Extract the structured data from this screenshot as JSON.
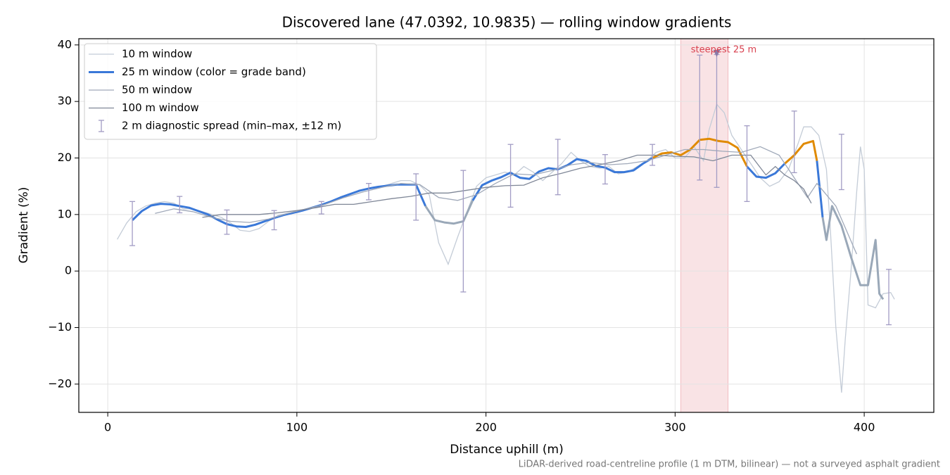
{
  "chart_data": {
    "type": "line",
    "title": "Discovered lane (47.0392, 10.9835) — rolling window gradients",
    "xlabel": "Distance uphill (m)",
    "ylabel": "Gradient (%)",
    "note": "LiDAR-derived road-centreline profile (1 m DTM, bilinear) — not a surveyed asphalt gradient",
    "xlim": [
      -15.3,
      436.8
    ],
    "ylim": [
      -25,
      41.1
    ],
    "xticks": [
      0,
      100,
      200,
      300,
      400
    ],
    "yticks": [
      {
        "value": -20,
        "label": "−20"
      },
      {
        "value": -10,
        "label": "−10"
      },
      0,
      10,
      20,
      30,
      40
    ],
    "grid": true,
    "legend": "upper left",
    "series": [
      {
        "name": "10 m window",
        "color": "#c4ccd7",
        "x": [
          5,
          10,
          15,
          20,
          25,
          30,
          35,
          40,
          45,
          50,
          55,
          60,
          65,
          70,
          75,
          80,
          85,
          90,
          95,
          100,
          105,
          110,
          115,
          120,
          125,
          130,
          135,
          140,
          145,
          150,
          155,
          160,
          165,
          170,
          175,
          180,
          185,
          190,
          195,
          200,
          205,
          210,
          215,
          220,
          225,
          230,
          235,
          240,
          245,
          250,
          255,
          260,
          265,
          270,
          275,
          280,
          285,
          290,
          295,
          300,
          305,
          310,
          315,
          318,
          322,
          326,
          330,
          335,
          340,
          345,
          350,
          355,
          360,
          365,
          368,
          372,
          376,
          380,
          382,
          385,
          388,
          390,
          393,
          396,
          398,
          400,
          402,
          406,
          410,
          414,
          416
        ],
        "values": [
          5.6,
          8.5,
          10.5,
          11.5,
          12.0,
          12.3,
          12.0,
          11.0,
          11.0,
          10.5,
          10.0,
          9.5,
          8.5,
          7.2,
          7.0,
          7.5,
          8.8,
          9.8,
          10.2,
          10.3,
          10.8,
          11.3,
          11.8,
          12.5,
          13.2,
          13.8,
          14.4,
          14.8,
          15.0,
          15.5,
          16.0,
          16.0,
          15.2,
          13.5,
          5.0,
          1.2,
          6.0,
          10.5,
          15.0,
          16.5,
          17.0,
          17.5,
          17.0,
          18.5,
          17.5,
          16.0,
          17.5,
          19.0,
          21.0,
          19.5,
          18.5,
          18.2,
          18.5,
          17.2,
          17.5,
          18.5,
          19.5,
          21.0,
          21.5,
          20.0,
          20.0,
          22.0,
          19.5,
          25.0,
          29.5,
          28.0,
          24.0,
          21.5,
          19.0,
          16.5,
          15.0,
          15.8,
          18.0,
          22.5,
          25.5,
          25.5,
          24.0,
          18.0,
          8.0,
          -10.0,
          -21.5,
          -12.0,
          0.0,
          14.0,
          22.0,
          18.0,
          -6.0,
          -6.5,
          -4.0,
          -3.8,
          -5.0
        ]
      },
      {
        "name": "25 m window (color = grade band)",
        "color": "#3a78d8",
        "x": [
          13,
          18,
          23,
          28,
          33,
          38,
          43,
          48,
          53,
          58,
          63,
          68,
          73,
          78,
          83,
          88,
          93,
          98,
          103,
          108,
          113,
          118,
          123,
          128,
          133,
          138,
          143,
          148,
          153,
          158,
          163,
          168,
          173,
          178,
          183,
          188,
          193,
          198,
          203,
          208,
          213,
          218,
          223,
          228,
          233,
          238,
          243,
          248,
          253,
          258,
          263,
          268,
          273,
          278,
          283,
          288,
          293,
          298,
          303,
          308,
          313,
          318,
          323,
          328,
          333,
          338,
          343,
          348,
          353,
          358,
          363,
          368,
          373,
          375,
          378,
          380,
          383,
          388,
          393,
          398,
          402,
          406,
          408,
          410
        ],
        "values": [
          9.0,
          10.6,
          11.6,
          11.9,
          11.8,
          11.5,
          11.2,
          10.6,
          10.0,
          9.1,
          8.3,
          7.9,
          7.8,
          8.2,
          8.8,
          9.4,
          9.9,
          10.3,
          10.7,
          11.2,
          11.7,
          12.3,
          13.0,
          13.6,
          14.2,
          14.6,
          14.9,
          15.1,
          15.3,
          15.3,
          15.3,
          11.5,
          9.0,
          8.6,
          8.4,
          8.8,
          12.5,
          15.2,
          16.0,
          16.6,
          17.4,
          16.5,
          16.3,
          17.6,
          18.2,
          18.0,
          18.7,
          19.8,
          19.5,
          18.6,
          18.3,
          17.5,
          17.5,
          17.8,
          19.0,
          20.0,
          20.8,
          21.0,
          20.5,
          21.5,
          23.2,
          23.4,
          23.0,
          22.8,
          21.8,
          18.5,
          16.7,
          16.5,
          17.3,
          19.0,
          20.5,
          22.5,
          23.0,
          19.5,
          9.5,
          5.5,
          11.5,
          8.0,
          2.5,
          -2.5,
          -2.5,
          5.5,
          -4.0,
          -5.0
        ],
        "colors": [
          "#3a78d8",
          "#3a78d8",
          "#3a78d8",
          "#3a78d8",
          "#3a78d8",
          "#3a78d8",
          "#3a78d8",
          "#3a78d8",
          "#3a78d8",
          "#3a78d8",
          "#3a78d8",
          "#3a78d8",
          "#3a78d8",
          "#3a78d8",
          "#3a78d8",
          "#3a78d8",
          "#3a78d8",
          "#3a78d8",
          "#3a78d8",
          "#3a78d8",
          "#3a78d8",
          "#3a78d8",
          "#3a78d8",
          "#3a78d8",
          "#3a78d8",
          "#3a78d8",
          "#3a78d8",
          "#3a78d8",
          "#3a78d8",
          "#3a78d8",
          "#3a78d8",
          "#9aa8b8",
          "#9aa8b8",
          "#9aa8b8",
          "#9aa8b8",
          "#9aa8b8",
          "#3a78d8",
          "#3a78d8",
          "#3a78d8",
          "#3a78d8",
          "#3a78d8",
          "#3a78d8",
          "#3a78d8",
          "#3a78d8",
          "#3a78d8",
          "#3a78d8",
          "#3a78d8",
          "#3a78d8",
          "#3a78d8",
          "#3a78d8",
          "#3a78d8",
          "#3a78d8",
          "#3a78d8",
          "#3a78d8",
          "#3a78d8",
          "#e08a00",
          "#e08a00",
          "#e08a00",
          "#e08a00",
          "#e08a00",
          "#e08a00",
          "#e08a00",
          "#e08a00",
          "#e08a00",
          "#e08a00",
          "#3a78d8",
          "#3a78d8",
          "#3a78d8",
          "#3a78d8",
          "#e08a00",
          "#e08a00",
          "#e08a00",
          "#e08a00",
          "#3a78d8",
          "#9aa8b8",
          "#9aa8b8",
          "#9aa8b8",
          "#9aa8b8",
          "#9aa8b8",
          "#9aa8b8",
          "#9aa8b8",
          "#9aa8b8",
          "#9aa8b8",
          "#9aa8b8"
        ]
      },
      {
        "name": "50 m window",
        "color": "#a0a9b9",
        "x": [
          25,
          35,
          45,
          55,
          65,
          75,
          85,
          95,
          105,
          115,
          125,
          135,
          145,
          155,
          165,
          175,
          185,
          195,
          205,
          215,
          225,
          235,
          245,
          255,
          265,
          275,
          285,
          295,
          305,
          315,
          325,
          335,
          345,
          355,
          365,
          370,
          375,
          385,
          396
        ],
        "values": [
          10.2,
          11.0,
          10.5,
          9.5,
          8.8,
          8.6,
          9.2,
          10.2,
          11.0,
          11.8,
          13.0,
          14.0,
          14.8,
          15.5,
          15.3,
          13.0,
          12.5,
          13.5,
          15.5,
          17.2,
          17.0,
          17.8,
          18.8,
          19.2,
          18.8,
          19.0,
          19.5,
          20.5,
          21.5,
          21.5,
          21.2,
          21.0,
          22.0,
          20.5,
          15.5,
          13.0,
          15.5,
          11.5,
          3.0
        ]
      },
      {
        "name": "100 m window",
        "color": "#7f8797",
        "x": [
          50,
          60,
          70,
          80,
          90,
          100,
          110,
          120,
          130,
          140,
          150,
          160,
          170,
          180,
          190,
          200,
          210,
          220,
          230,
          240,
          250,
          260,
          270,
          280,
          290,
          300,
          310,
          320,
          330,
          340,
          348,
          353,
          358,
          363,
          368,
          372
        ],
        "values": [
          9.5,
          10.0,
          10.0,
          10.0,
          10.3,
          10.7,
          11.2,
          11.8,
          11.8,
          12.3,
          12.8,
          13.2,
          13.8,
          13.8,
          14.3,
          14.8,
          15.1,
          15.2,
          16.5,
          17.3,
          18.2,
          18.8,
          19.5,
          20.5,
          20.5,
          20.3,
          20.2,
          19.5,
          20.5,
          20.5,
          17.0,
          18.5,
          17.0,
          16.0,
          14.5,
          12.0
        ]
      }
    ],
    "errorbars": {
      "name": "2 m diagnostic spread (min–max, ±12 m)",
      "color": "#a29cc4",
      "x": [
        13,
        38,
        63,
        88,
        113,
        138,
        163,
        188,
        213,
        238,
        263,
        288,
        313,
        322,
        338,
        363,
        388,
        413
      ],
      "low": [
        4.5,
        10.3,
        6.5,
        7.3,
        10.1,
        12.6,
        9.0,
        -3.7,
        11.3,
        13.5,
        15.4,
        18.7,
        16.1,
        14.8,
        12.3,
        17.4,
        14.4,
        -9.5
      ],
      "high": [
        12.3,
        13.2,
        10.8,
        10.7,
        12.3,
        15.5,
        17.2,
        17.8,
        22.4,
        23.3,
        20.6,
        22.4,
        38.2,
        38.3,
        25.7,
        28.3,
        24.2,
        0.3
      ]
    },
    "highlight": {
      "label": "steepest 25 m",
      "color": "#d9414f",
      "x": [
        303,
        328
      ],
      "marker": {
        "x": 322,
        "y": 38.5,
        "color": "#8a7aa8"
      }
    }
  }
}
